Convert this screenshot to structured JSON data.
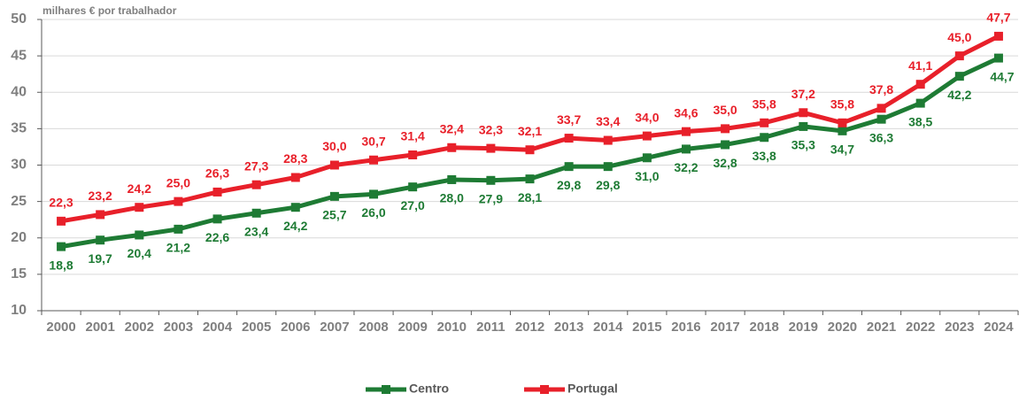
{
  "chart_data": {
    "type": "line",
    "y_axis_label": "milhares € por trabalhador",
    "categories": [
      "2000",
      "2001",
      "2002",
      "2003",
      "2004",
      "2005",
      "2006",
      "2007",
      "2008",
      "2009",
      "2010",
      "2011",
      "2012",
      "2013",
      "2014",
      "2015",
      "2016",
      "2017",
      "2018",
      "2019",
      "2020",
      "2021",
      "2022",
      "2023",
      "2024"
    ],
    "series": [
      {
        "name": "Centro",
        "color": "#1e7b34",
        "values": [
          18.8,
          19.7,
          20.4,
          21.2,
          22.6,
          23.4,
          24.2,
          25.7,
          26.0,
          27.0,
          28.0,
          27.9,
          28.1,
          29.8,
          29.8,
          31.0,
          32.2,
          32.8,
          33.8,
          35.3,
          34.7,
          36.3,
          38.5,
          42.2,
          44.7
        ],
        "value_labels": [
          "18,8",
          "19,7",
          "20,4",
          "21,2",
          "22,6",
          "23,4",
          "24,2",
          "25,7",
          "26,0",
          "27,0",
          "28,0",
          "27,9",
          "28,1",
          "29,8",
          "29,8",
          "31,0",
          "32,2",
          "32,8",
          "33,8",
          "35,3",
          "34,7",
          "36,3",
          "38,5",
          "42,2",
          "44,7"
        ]
      },
      {
        "name": "Portugal",
        "color": "#e8202a",
        "values": [
          22.3,
          23.2,
          24.2,
          25.0,
          26.3,
          27.3,
          28.3,
          30.0,
          30.7,
          31.4,
          32.4,
          32.3,
          32.1,
          33.7,
          33.4,
          34.0,
          34.6,
          35.0,
          35.8,
          37.2,
          35.8,
          37.8,
          41.1,
          45.0,
          47.7
        ],
        "value_labels": [
          "22,3",
          "23,2",
          "24,2",
          "25,0",
          "26,3",
          "27,3",
          "28,3",
          "30,0",
          "30,7",
          "31,4",
          "32,4",
          "32,3",
          "32,1",
          "33,7",
          "33,4",
          "34,0",
          "34,6",
          "35,0",
          "35,8",
          "37,2",
          "35,8",
          "37,8",
          "41,1",
          "45,0",
          "47,7"
        ]
      }
    ],
    "ylim": [
      10,
      50
    ],
    "yticks": [
      10,
      15,
      20,
      25,
      30,
      35,
      40,
      45,
      50
    ],
    "grid": true,
    "legend": "bottom"
  }
}
